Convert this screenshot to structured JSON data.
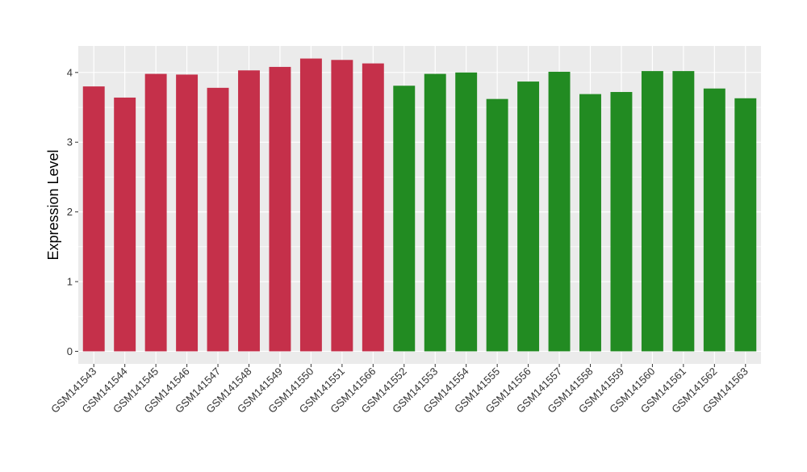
{
  "chart_data": {
    "type": "bar",
    "ylabel": "Expression Level",
    "xlabel": "",
    "ylim": [
      -0.18,
      4.38
    ],
    "y_ticks": [
      0,
      1,
      2,
      3,
      4
    ],
    "grid": true,
    "panel_background": "#EBEBEB",
    "categories": [
      "GSM141543",
      "GSM141544",
      "GSM141545",
      "GSM141546",
      "GSM141547",
      "GSM141548",
      "GSM141549",
      "GSM141550",
      "GSM141551",
      "GSM141566",
      "GSM141552",
      "GSM141553",
      "GSM141554",
      "GSM141555",
      "GSM141556",
      "GSM141557",
      "GSM141558",
      "GSM141559",
      "GSM141560",
      "GSM141561",
      "GSM141562",
      "GSM141563"
    ],
    "values": [
      3.8,
      3.64,
      3.98,
      3.97,
      3.78,
      4.03,
      4.08,
      4.2,
      4.18,
      4.13,
      3.81,
      3.98,
      4.0,
      3.62,
      3.87,
      4.01,
      3.69,
      3.72,
      4.02,
      4.02,
      3.77,
      3.63
    ],
    "bar_colors": [
      "#C5304A",
      "#C5304A",
      "#C5304A",
      "#C5304A",
      "#C5304A",
      "#C5304A",
      "#C5304A",
      "#C5304A",
      "#C5304A",
      "#C5304A",
      "#228B22",
      "#228B22",
      "#228B22",
      "#228B22",
      "#228B22",
      "#228B22",
      "#228B22",
      "#228B22",
      "#228B22",
      "#228B22",
      "#228B22",
      "#228B22"
    ]
  }
}
